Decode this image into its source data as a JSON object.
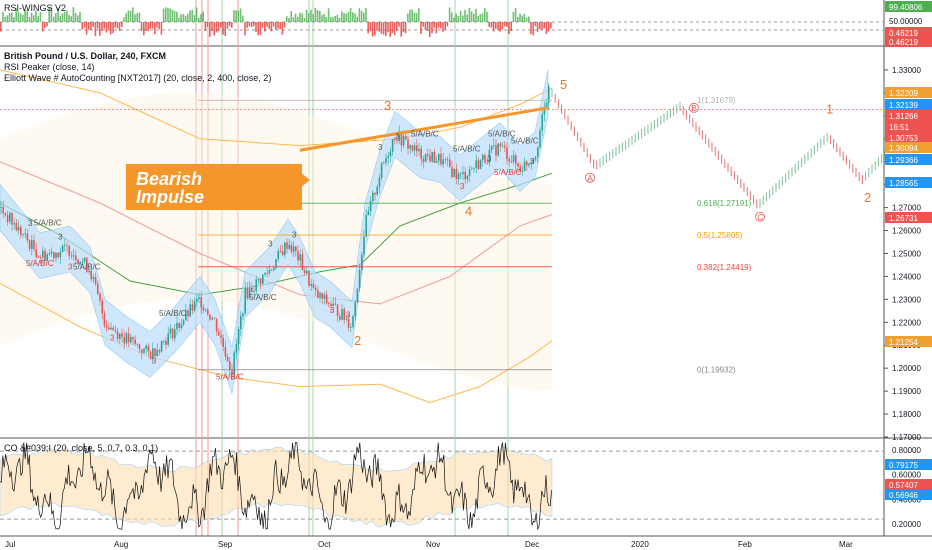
{
  "chart_data": [
    {
      "type": "line",
      "pane": "RSI-WINGS",
      "title": "RSI-WINGS V2",
      "y_ticks": [
        "99.40806",
        "50.00000",
        "0.46219",
        "0.46219"
      ]
    },
    {
      "type": "candlestick",
      "pane": "main",
      "title": "British Pound / U.S. Dollar, 240, FXCM",
      "indicators": [
        "RSI Peaker (close, 14)",
        "Elliott Wave # AutoCounting [NXT2017] (20, close, 2, 400, close, 2)"
      ],
      "x_ticks": [
        "Jul",
        "Aug",
        "Sep",
        "Oct",
        "Nov",
        "Dec",
        "2020",
        "Feb",
        "Mar"
      ],
      "y_ticks": [
        "1.33000",
        "1.32000",
        "1.31000",
        "1.30000",
        "1.29000",
        "1.28000",
        "1.27000",
        "1.26000",
        "1.25000",
        "1.24000",
        "1.23000",
        "1.22000",
        "1.21000",
        "1.20000",
        "1.19000",
        "1.18000",
        "1.17000"
      ],
      "ylim": [
        1.17,
        1.34
      ],
      "price_tags": [
        {
          "label": "1.32209",
          "value": 1.32209,
          "color": "#f0a030"
        },
        {
          "label": "1.32139",
          "value": 1.32139,
          "color": "#2196f3"
        },
        {
          "label": "1.31266",
          "value": 1.31266,
          "color": "#ef5350"
        },
        {
          "label": "16:51",
          "value": 1.3102,
          "color": "#ef5350"
        },
        {
          "label": "1.30753",
          "value": 1.30753,
          "color": "#ef5350"
        },
        {
          "label": "1.30094",
          "value": 1.30094,
          "color": "#f0a030"
        },
        {
          "label": "1.29366",
          "value": 1.29366,
          "color": "#2196f3"
        },
        {
          "label": "1.28565",
          "value": 1.28565,
          "color": "#2196f3"
        },
        {
          "label": "1.26731",
          "value": 1.26731,
          "color": "#ef5350"
        },
        {
          "label": "1.21254",
          "value": 1.21254,
          "color": "#f0a030"
        }
      ],
      "fib_levels": [
        {
          "label": "1(1.31679)",
          "value": 1.31679,
          "color": "#b0b0b0"
        },
        {
          "label": "0.618(1.27191)",
          "value": 1.27191,
          "color": "#4caf50"
        },
        {
          "label": "0.5(1.25805)",
          "value": 1.25805,
          "color": "#ff9800"
        },
        {
          "label": "0.382(1.24419)",
          "value": 1.24419,
          "color": "#f44336"
        },
        {
          "label": "0(1.19932)",
          "value": 1.19932,
          "color": "#888888"
        }
      ],
      "price_path": [
        {
          "x": 0,
          "y": 1.27
        },
        {
          "x": 40,
          "y": 1.249
        },
        {
          "x": 70,
          "y": 1.252
        },
        {
          "x": 90,
          "y": 1.243
        },
        {
          "x": 105,
          "y": 1.22
        },
        {
          "x": 125,
          "y": 1.213
        },
        {
          "x": 150,
          "y": 1.206
        },
        {
          "x": 175,
          "y": 1.217
        },
        {
          "x": 200,
          "y": 1.23
        },
        {
          "x": 215,
          "y": 1.22
        },
        {
          "x": 232,
          "y": 1.199
        },
        {
          "x": 245,
          "y": 1.232
        },
        {
          "x": 270,
          "y": 1.243
        },
        {
          "x": 288,
          "y": 1.255
        },
        {
          "x": 300,
          "y": 1.247
        },
        {
          "x": 315,
          "y": 1.232
        },
        {
          "x": 330,
          "y": 1.228
        },
        {
          "x": 352,
          "y": 1.219
        },
        {
          "x": 365,
          "y": 1.262
        },
        {
          "x": 380,
          "y": 1.285
        },
        {
          "x": 395,
          "y": 1.302
        },
        {
          "x": 420,
          "y": 1.293
        },
        {
          "x": 440,
          "y": 1.291
        },
        {
          "x": 460,
          "y": 1.283
        },
        {
          "x": 480,
          "y": 1.29
        },
        {
          "x": 500,
          "y": 1.297
        },
        {
          "x": 520,
          "y": 1.287
        },
        {
          "x": 535,
          "y": 1.293
        },
        {
          "x": 548,
          "y": 1.32
        }
      ],
      "projection": [
        {
          "x": 552,
          "y": 1.32
        },
        {
          "x": 595,
          "y": 1.288
        },
        {
          "x": 680,
          "y": 1.314
        },
        {
          "x": 758,
          "y": 1.271
        },
        {
          "x": 828,
          "y": 1.301
        },
        {
          "x": 862,
          "y": 1.282
        },
        {
          "x": 885,
          "y": 1.293
        }
      ],
      "wave_labels": [
        {
          "text": "5",
          "x": 560,
          "y": 1.3218,
          "big": true
        },
        {
          "text": "3",
          "x": 384,
          "y": 1.3125,
          "big": true
        },
        {
          "text": "1",
          "x": 288,
          "y": 1.2695,
          "big": true
        },
        {
          "text": "2",
          "x": 354,
          "y": 1.21,
          "big": true
        },
        {
          "text": "4",
          "x": 465,
          "y": 1.2665,
          "big": true
        },
        {
          "text": "1",
          "x": 826,
          "y": 1.311,
          "big": true
        },
        {
          "text": "2",
          "x": 864,
          "y": 1.2725,
          "big": true
        },
        {
          "text": "5/A/B/C",
          "x": 48,
          "y": 1.2623,
          "color": "#555555"
        },
        {
          "text": "5/A/B/C",
          "x": 40,
          "y": 1.2445,
          "color": "#e53935"
        },
        {
          "text": "5/A/B/C",
          "x": 87,
          "y": 1.243,
          "color": "#555555"
        },
        {
          "text": "5/A/B/C",
          "x": 173,
          "y": 1.2228,
          "color": "#555555"
        },
        {
          "text": "5/A/B/C",
          "x": 263,
          "y": 1.2298,
          "color": "#555555"
        },
        {
          "text": "5/A/B/C",
          "x": 230,
          "y": 1.195,
          "color": "#e53935"
        },
        {
          "text": "5/A/B/C",
          "x": 425,
          "y": 1.301,
          "color": "#555555"
        },
        {
          "text": "5/A/B/C",
          "x": 467,
          "y": 1.2945,
          "color": "#555555"
        },
        {
          "text": "5/A/B/C",
          "x": 502,
          "y": 1.301,
          "color": "#555555"
        },
        {
          "text": "5/A/B/C",
          "x": 525,
          "y": 1.298,
          "color": "#555555"
        },
        {
          "text": "5/A/B/C",
          "x": 508,
          "y": 1.2843,
          "color": "#e53935"
        }
      ],
      "small_counts": [
        {
          "text": "3",
          "x": 28,
          "y": 1.262,
          "color": "#555555"
        },
        {
          "text": "3",
          "x": 58,
          "y": 1.256,
          "color": "#555555"
        },
        {
          "text": "3",
          "x": 68,
          "y": 1.243,
          "color": "#e53935"
        },
        {
          "text": "3",
          "x": 110,
          "y": 1.212,
          "color": "#e53935"
        },
        {
          "text": "3",
          "x": 152,
          "y": 1.202,
          "color": "#e53935"
        },
        {
          "text": "3",
          "x": 268,
          "y": 1.253,
          "color": "#555555"
        },
        {
          "text": "3",
          "x": 292,
          "y": 1.257,
          "color": "#555555"
        },
        {
          "text": "3",
          "x": 330,
          "y": 1.224,
          "color": "#e53935"
        },
        {
          "text": "3",
          "x": 346,
          "y": 1.222,
          "color": "#e53935"
        },
        {
          "text": "3",
          "x": 378,
          "y": 1.295,
          "color": "#555555"
        },
        {
          "text": "3",
          "x": 395,
          "y": 1.3,
          "color": "#555555"
        },
        {
          "text": "3",
          "x": 460,
          "y": 1.278,
          "color": "#e53935"
        },
        {
          "text": "3",
          "x": 487,
          "y": 1.29,
          "color": "#555555"
        },
        {
          "text": "3",
          "x": 530,
          "y": 1.289,
          "color": "#555555"
        }
      ],
      "corrective_labels": [
        {
          "text": "A",
          "x": 590,
          "y": 1.283
        },
        {
          "text": "B",
          "x": 694,
          "y": 1.3135
        },
        {
          "text": "C",
          "x": 760,
          "y": 1.266
        }
      ],
      "callout": [
        "Bearish",
        "Impulse"
      ]
    },
    {
      "type": "line",
      "pane": "CO",
      "title": "CO &#039;I (20, close, 5, 0.7, 0.3, 0.1)",
      "y_ticks": [
        "0.80000",
        "0.60000",
        "0.40000",
        "0.20000"
      ],
      "price_tags": [
        {
          "label": "0.79175",
          "color": "#2196f3"
        },
        {
          "label": "0.57407",
          "color": "#ef5350"
        },
        {
          "label": "0.56946",
          "color": "#2196f3"
        }
      ]
    }
  ]
}
